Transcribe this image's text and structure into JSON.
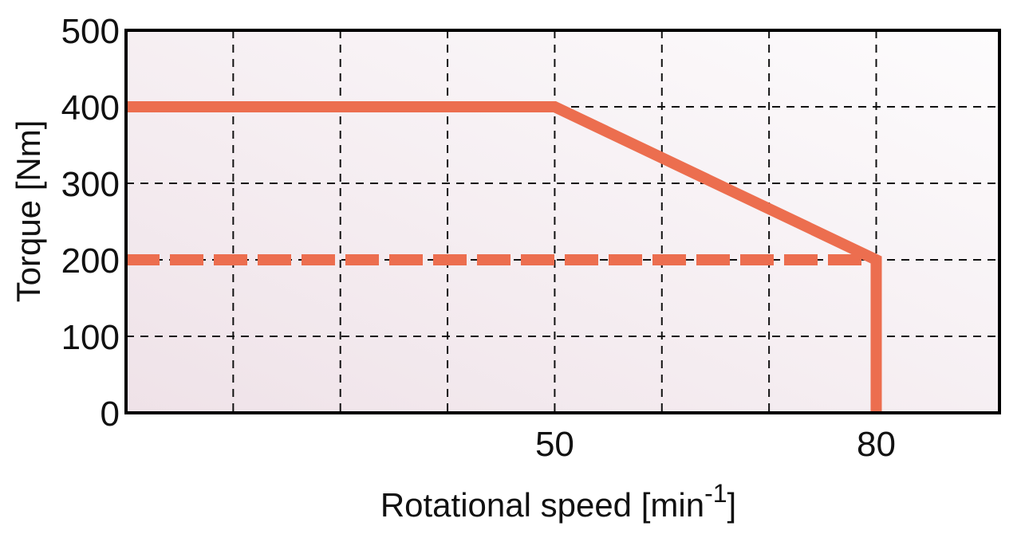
{
  "chart_data": {
    "type": "line",
    "title": "",
    "xlabel": "Rotational speed [min",
    "xlabel_superscript": "-1",
    "xlabel_suffix": "]",
    "ylabel": "Torque [Nm]",
    "xlim": [
      10,
      91.5
    ],
    "ylim": [
      0,
      500
    ],
    "x_gridlines": [
      20,
      30,
      40,
      50,
      60,
      70,
      80
    ],
    "y_gridlines": [
      100,
      200,
      300,
      400
    ],
    "x_tick_labels": [
      {
        "value": 50,
        "label": "50"
      },
      {
        "value": 80,
        "label": "80"
      }
    ],
    "y_tick_labels": [
      {
        "value": 0,
        "label": "0"
      },
      {
        "value": 100,
        "label": "100"
      },
      {
        "value": 200,
        "label": "200"
      },
      {
        "value": 300,
        "label": "300"
      },
      {
        "value": 400,
        "label": "400"
      },
      {
        "value": 500,
        "label": "500"
      }
    ],
    "grid": true,
    "series": [
      {
        "style": "solid",
        "color": "#ec6e4f",
        "points": [
          [
            10,
            400
          ],
          [
            50,
            400
          ],
          [
            80,
            200
          ],
          [
            80,
            0
          ]
        ]
      },
      {
        "style": "dashed",
        "color": "#ec6e4f",
        "points": [
          [
            10,
            200
          ],
          [
            80,
            200
          ]
        ]
      }
    ]
  }
}
